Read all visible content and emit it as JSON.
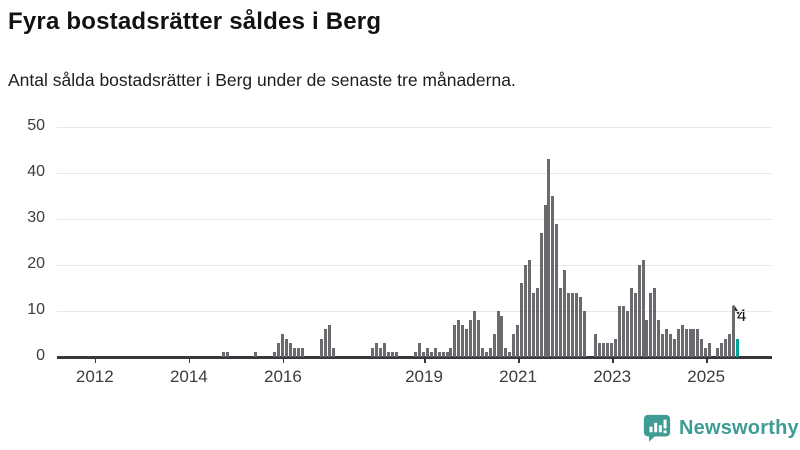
{
  "header": {
    "title": "Fyra bostadsrätter såldes i Berg",
    "subtitle": "Antal sålda bostadsrätter i Berg under de senaste tre månaderna."
  },
  "chart_data": {
    "type": "bar",
    "x_start": "2011-05",
    "x_freq": "monthly",
    "values": [
      0,
      0,
      0,
      0,
      0,
      0,
      0,
      0,
      0,
      0,
      0,
      0,
      0,
      0,
      0,
      0,
      0,
      0,
      0,
      0,
      0,
      0,
      0,
      0,
      0,
      0,
      0,
      0,
      0,
      0,
      0,
      0,
      0,
      0,
      0,
      0,
      0,
      0,
      0,
      0,
      0,
      1,
      1,
      0,
      0,
      0,
      0,
      0,
      0,
      1,
      0,
      0,
      0,
      0,
      1,
      3,
      5,
      4,
      3,
      2,
      2,
      2,
      0,
      0,
      0,
      0,
      4,
      6,
      7,
      2,
      0,
      0,
      0,
      0,
      0,
      0,
      0,
      0,
      0,
      2,
      3,
      2,
      3,
      1,
      1,
      1,
      0,
      0,
      0,
      0,
      1,
      3,
      1,
      2,
      1,
      2,
      1,
      1,
      1,
      2,
      7,
      8,
      7,
      6,
      8,
      10,
      8,
      2,
      1,
      2,
      5,
      10,
      9,
      2,
      1,
      5,
      7,
      16,
      20,
      21,
      14,
      15,
      27,
      33,
      43,
      35,
      29,
      15,
      19,
      14,
      14,
      14,
      13,
      10,
      0,
      0,
      5,
      3,
      3,
      3,
      3,
      4,
      11,
      11,
      10,
      15,
      14,
      20,
      21,
      8,
      14,
      15,
      8,
      5,
      6,
      5,
      4,
      6,
      7,
      6,
      6,
      6,
      6,
      4,
      2,
      3,
      0,
      2,
      3,
      4,
      5,
      11,
      4
    ],
    "highlight_last_value": 4,
    "bar_color": "#69696e",
    "highlight_color": "#00a69e",
    "ylim": [
      0,
      50
    ],
    "yticks": [
      0,
      10,
      20,
      30,
      40,
      50
    ],
    "xticks": [
      {
        "label": "2012",
        "month_index": 8
      },
      {
        "label": "2014",
        "month_index": 32
      },
      {
        "label": "2016",
        "month_index": 56
      },
      {
        "label": "2019",
        "month_index": 92
      },
      {
        "label": "2021",
        "month_index": 116
      },
      {
        "label": "2023",
        "month_index": 140
      },
      {
        "label": "2025",
        "month_index": 164
      }
    ],
    "annotation": {
      "text": "4"
    },
    "grid": "horizontal",
    "legend": "none"
  },
  "footer": {
    "brand": "Newsworthy",
    "brand_color": "#3f9c95"
  }
}
